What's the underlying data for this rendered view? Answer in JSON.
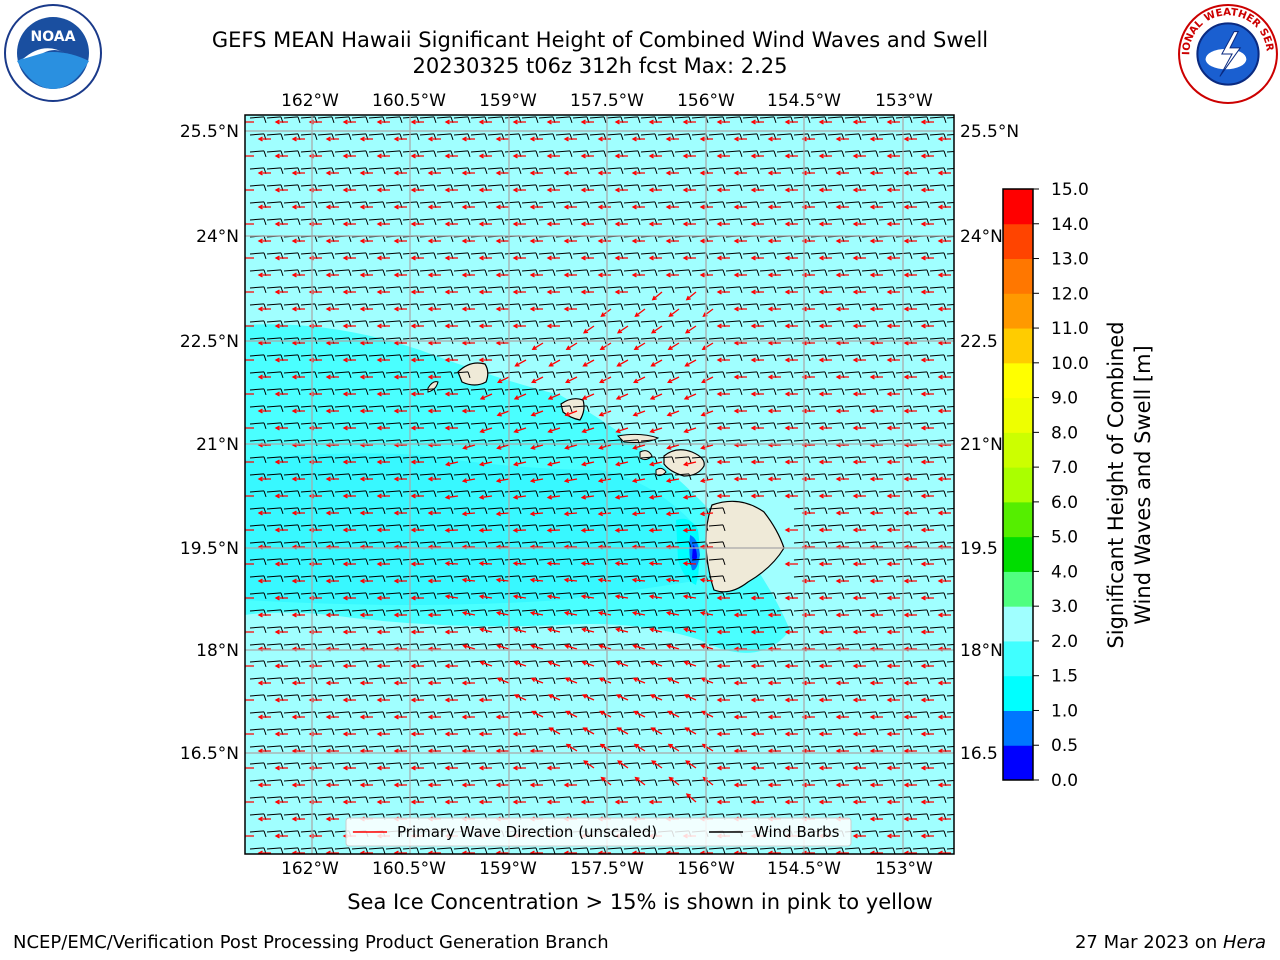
{
  "title": {
    "line1": "GEFS MEAN Hawaii Significant Height of Combined Wind Waves and Swell",
    "line2": "20230325 t06z 312h fcst   Max: 2.25"
  },
  "logos": {
    "left": {
      "icon": "noaa-logo",
      "text": "NOAA"
    },
    "right": {
      "icon": "nws-logo",
      "text": "NATIONAL WEATHER SERVICE"
    }
  },
  "map": {
    "lon_labels": [
      "162°W",
      "160.5°W",
      "159°W",
      "157.5°W",
      "156°W",
      "154.5°W",
      "153°W"
    ],
    "lat_labels_left": [
      "25.5°N",
      "24°N",
      "22.5°N",
      "21°N",
      "19.5°N",
      "18°N",
      "16.5°N"
    ],
    "lat_labels_right": [
      "25.5°N",
      "24°N",
      "22.5",
      "21°N",
      "19.5",
      "18°N",
      "16.5"
    ],
    "ocean_color": "#a0ffff",
    "legend": {
      "wave_direction": "Primary Wave Direction (unscaled)",
      "wind_barbs": "Wind Barbs",
      "wave_color": "#ff0000",
      "barb_color": "#000000"
    }
  },
  "colorbar": {
    "title_line1": "Significant Height of Combined",
    "title_line2": "Wind Waves and Swell [m]",
    "ticks": [
      "0.0",
      "0.5",
      "1.0",
      "1.5",
      "2.0",
      "3.0",
      "4.0",
      "5.0",
      "6.0",
      "7.0",
      "8.0",
      "9.0",
      "10.0",
      "11.0",
      "12.0",
      "13.0",
      "14.0",
      "15.0"
    ],
    "colors": [
      "#0000ff",
      "#0077ff",
      "#00ffff",
      "#40ffff",
      "#a0ffff",
      "#50ff80",
      "#00dd00",
      "#55ee00",
      "#aaff00",
      "#ccff00",
      "#eeff00",
      "#ffff00",
      "#ffcc00",
      "#ff9900",
      "#ff7700",
      "#ff4400",
      "#ff0000"
    ]
  },
  "subtitle": "Sea Ice Concentration > 15% is shown in pink to yellow",
  "footer": {
    "left": "NCEP/EMC/Verification Post Processing Product Generation Branch",
    "right_prefix": "27 Mar 2023 on ",
    "right_machine": "Hera"
  }
}
